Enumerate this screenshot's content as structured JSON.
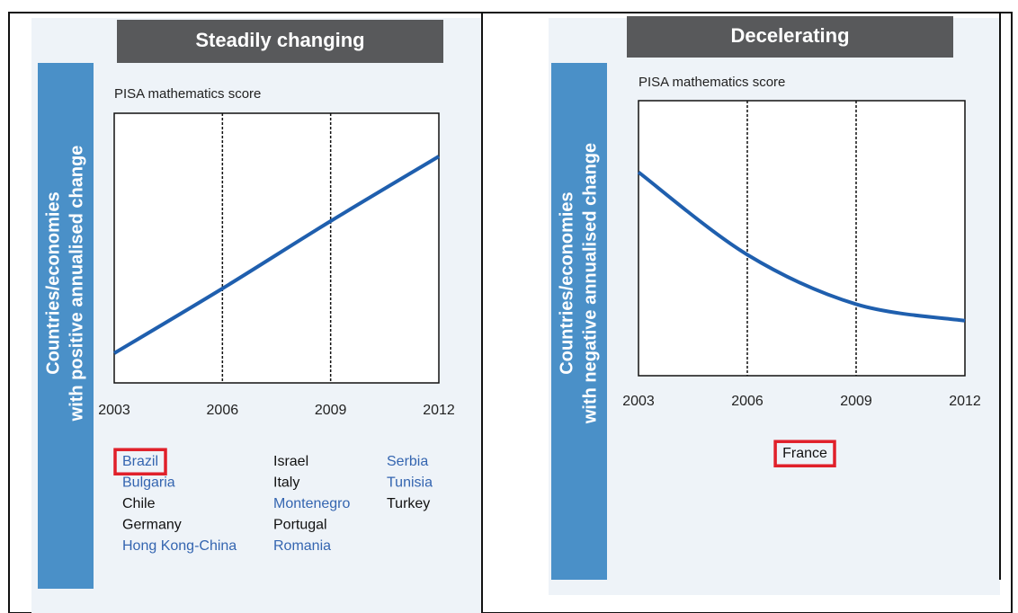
{
  "chart_data": [
    {
      "type": "line",
      "header": "Steadily changing",
      "side_label": [
        "Countries/economies",
        "with positive annualised change"
      ],
      "ylabel": "PISA mathematics score",
      "x": [
        2003,
        2006,
        2009,
        2012
      ],
      "xlim": [
        2003,
        2012
      ],
      "xticks": [
        2003,
        2006,
        2009,
        2012
      ],
      "xgrid": true,
      "ylim": [
        0,
        100
      ],
      "series": [
        {
          "color": "#1f5fae",
          "values": [
            11,
            35,
            60,
            84
          ]
        }
      ],
      "countries": [
        {
          "name": "Brazil",
          "color": "#3465b0",
          "highlight": true
        },
        {
          "name": "Bulgaria",
          "color": "#3465b0"
        },
        {
          "name": "Chile",
          "color": "#111"
        },
        {
          "name": "Germany",
          "color": "#111"
        },
        {
          "name": "Hong Kong-China",
          "color": "#3465b0"
        },
        {
          "name": "Israel",
          "color": "#111"
        },
        {
          "name": "Italy",
          "color": "#111"
        },
        {
          "name": "Montenegro",
          "color": "#3465b0"
        },
        {
          "name": "Portugal",
          "color": "#111"
        },
        {
          "name": "Romania",
          "color": "#3465b0"
        },
        {
          "name": "Serbia",
          "color": "#3465b0"
        },
        {
          "name": "Tunisia",
          "color": "#3465b0"
        },
        {
          "name": "Turkey",
          "color": "#111"
        }
      ]
    },
    {
      "type": "line",
      "header": "Decelerating",
      "side_label": [
        "Countries/economies",
        "with negative annualised change"
      ],
      "ylabel": "PISA mathematics score",
      "x": [
        2003,
        2006,
        2009,
        2012
      ],
      "xlim": [
        2003,
        2012
      ],
      "xticks": [
        2003,
        2006,
        2009,
        2012
      ],
      "xgrid": true,
      "ylim": [
        0,
        100
      ],
      "series": [
        {
          "color": "#1f5fae",
          "values": [
            74,
            44,
            26,
            20
          ]
        }
      ],
      "countries": [
        {
          "name": "France",
          "color": "#111",
          "highlight": true
        }
      ]
    }
  ]
}
